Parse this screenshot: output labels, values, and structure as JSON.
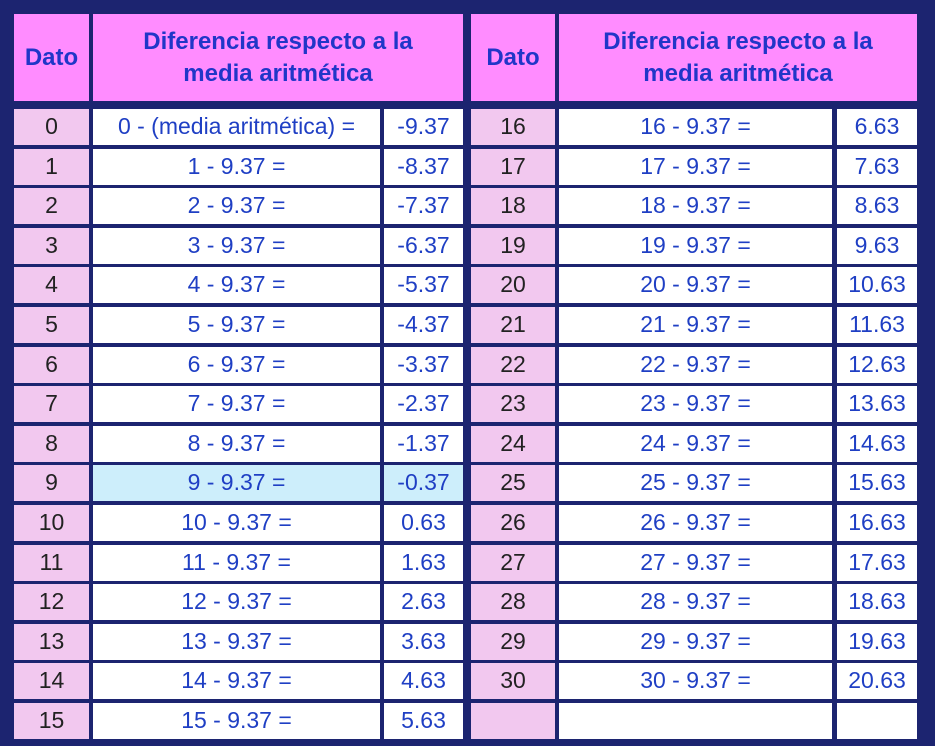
{
  "header": {
    "left": {
      "dato": "Dato",
      "diferencia": "Diferencia respecto a la media aritmética"
    },
    "right": {
      "dato": "Dato",
      "diferencia": "Diferencia respecto a la media aritmética"
    }
  },
  "table": {
    "rows": [
      [
        "0",
        "0 - (media aritmética) =",
        "-9.37",
        "16",
        "16 - 9.37 =",
        "6.63"
      ],
      [
        "1",
        "1 - 9.37 =",
        "-8.37",
        "17",
        "17 - 9.37 =",
        "7.63"
      ],
      [
        "2",
        "2 - 9.37 =",
        "-7.37",
        "18",
        "18 - 9.37 =",
        "8.63"
      ],
      [
        "3",
        "3 - 9.37 =",
        "-6.37",
        "19",
        "19 - 9.37 =",
        "9.63"
      ],
      [
        "4",
        "4 - 9.37 =",
        "-5.37",
        "20",
        "20 - 9.37 =",
        "10.63"
      ],
      [
        "5",
        "5 - 9.37 =",
        "-4.37",
        "21",
        "21 - 9.37 =",
        "11.63"
      ],
      [
        "6",
        "6 - 9.37 =",
        "-3.37",
        "22",
        "22 - 9.37 =",
        "12.63"
      ],
      [
        "7",
        "7 - 9.37 =",
        "-2.37",
        "23",
        "23 - 9.37 =",
        "13.63"
      ],
      [
        "8",
        "8 - 9.37 =",
        "-1.37",
        "24",
        "24 - 9.37 =",
        "14.63"
      ],
      [
        "9",
        "9 - 9.37 =",
        "-0.37",
        "25",
        "25 - 9.37 =",
        "15.63"
      ],
      [
        "10",
        "10 - 9.37 =",
        "0.63",
        "26",
        "26 - 9.37 =",
        "16.63"
      ],
      [
        "11",
        "11 - 9.37 =",
        "1.63",
        "27",
        "27 - 9.37 =",
        "17.63"
      ],
      [
        "12",
        "12 - 9.37 =",
        "2.63",
        "28",
        "28 - 9.37 =",
        "18.63"
      ],
      [
        "13",
        "13 - 9.37 =",
        "3.63",
        "29",
        "29 - 9.37 =",
        "19.63"
      ],
      [
        "14",
        "14 - 9.37 =",
        "4.63",
        "30",
        "30 - 9.37 =",
        "20.63"
      ],
      [
        "15",
        "15 - 9.37 =",
        "5.63",
        null,
        null,
        null
      ]
    ]
  }
}
